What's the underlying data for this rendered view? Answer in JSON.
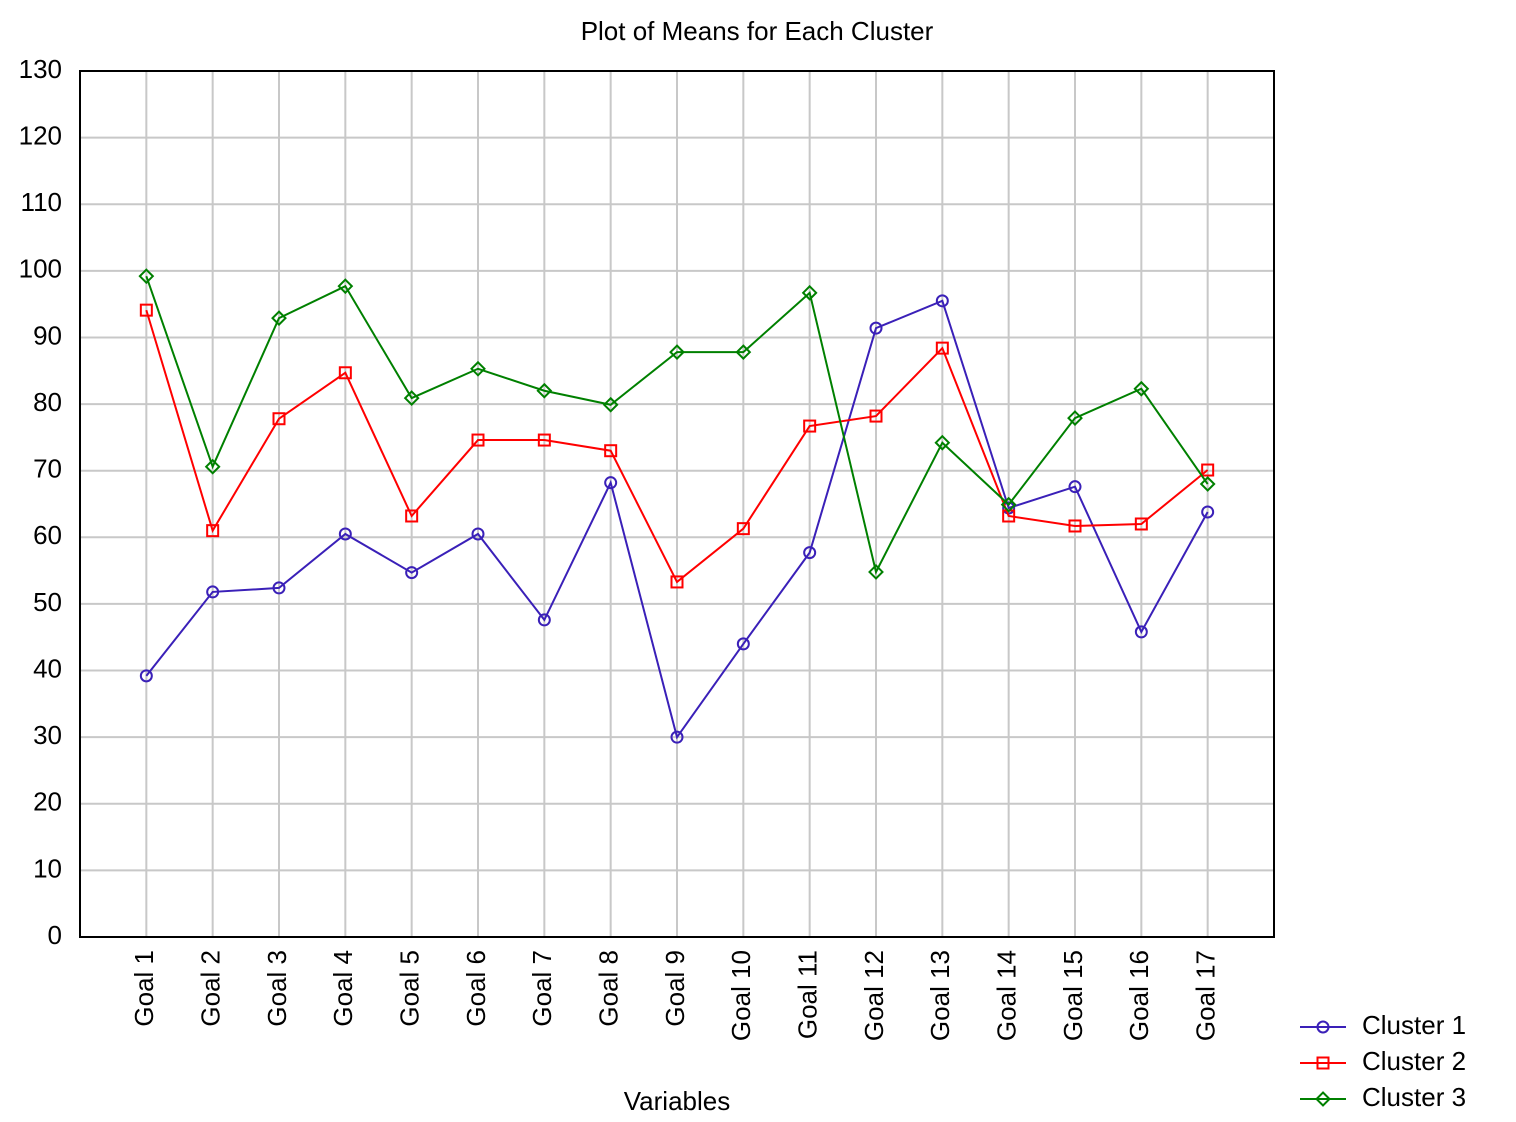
{
  "chart_data": {
    "type": "line",
    "title": "Plot of Means for Each Cluster",
    "x_label": "Variables",
    "categories": [
      "Goal 1",
      "Goal 2",
      "Goal 3",
      "Goal 4",
      "Goal 5",
      "Goal 6",
      "Goal 7",
      "Goal 8",
      "Goal 9",
      "Goal 10",
      "Goal 11",
      "Goal 12",
      "Goal 13",
      "Goal 14",
      "Goal 15",
      "Goal 16",
      "Goal 17"
    ],
    "series": [
      {
        "name": "Cluster 1",
        "color": "#3a20b8",
        "marker": "circle",
        "values": [
          39.2,
          51.8,
          52.4,
          60.5,
          54.7,
          60.5,
          47.6,
          68.2,
          30.0,
          44.0,
          57.7,
          91.4,
          95.5,
          64.4,
          67.6,
          45.8,
          63.8
        ]
      },
      {
        "name": "Cluster 2",
        "color": "#ff0000",
        "marker": "square",
        "values": [
          94.1,
          61.0,
          77.8,
          84.7,
          63.2,
          74.6,
          74.6,
          73.0,
          53.3,
          61.3,
          76.7,
          78.2,
          88.4,
          63.2,
          61.7,
          62.0,
          70.1
        ]
      },
      {
        "name": "Cluster 3",
        "color": "#008000",
        "marker": "diamond",
        "values": [
          99.2,
          70.6,
          92.9,
          97.7,
          80.9,
          85.3,
          82.0,
          79.9,
          87.8,
          87.8,
          96.7,
          54.8,
          74.2,
          64.9,
          77.9,
          82.3,
          68.0
        ]
      }
    ],
    "ylim": [
      0,
      130
    ],
    "yticks": [
      0,
      10,
      20,
      30,
      40,
      50,
      60,
      70,
      80,
      90,
      100,
      110,
      120,
      130
    ],
    "grid": true,
    "legend": "bottom-right"
  }
}
